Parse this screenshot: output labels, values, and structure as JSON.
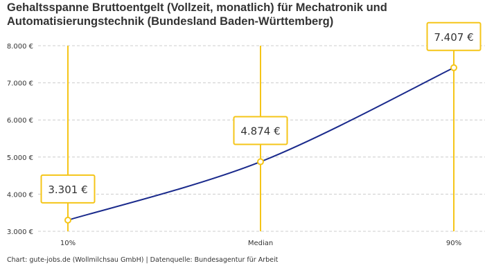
{
  "title": "Gehaltsspanne Bruttoentgelt (Vollzeit, monatlich) für Mechatronik und Automatisierungstechnik (Bundesland Baden-Württemberg)",
  "footer": "Chart: gute-jobs.de (Wollmilchsau GmbH) | Datenquelle: Bundesagentur für Arbeit",
  "colors": {
    "line": "#1a2a8c",
    "accent": "#f5c518",
    "grid": "#cccccc",
    "text": "#333333"
  },
  "chart_data": {
    "type": "line",
    "categories": [
      "10%",
      "Median",
      "90%"
    ],
    "values": [
      3301,
      4874,
      7407
    ],
    "data_labels": [
      "3.301 €",
      "4.874 €",
      "7.407 €"
    ],
    "yticks": [
      3000,
      4000,
      5000,
      6000,
      7000,
      8000
    ],
    "ytick_labels": [
      "3.000 €",
      "4.000 €",
      "5.000 €",
      "6.000 €",
      "7.000 €",
      "8.000 €"
    ],
    "ylim": [
      3000,
      8000
    ],
    "grid": "horizontal dashed",
    "legend": "none"
  }
}
